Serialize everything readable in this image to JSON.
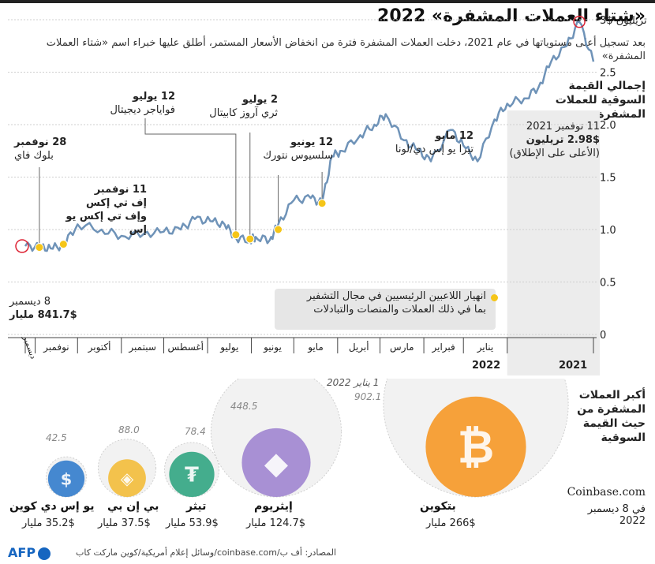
{
  "header": {
    "title": "«شتاء العملات المشفرة» 2022",
    "subtitle": "بعد تسجيل أعلى مستوياتها في عام 2021، دخلت العملات المشفرة فترة من انخفاض الأسعار المستمر، أطلق عليها خبراء اسم «شتاء العملات المشفرة»"
  },
  "y_title": "إجمالي القيمة السوقية للعملات المشفرة",
  "peak": {
    "date": "11 نوفمبر 2021",
    "value": "2.98$ تريليون",
    "note": "(الأعلى على الإطلاق)"
  },
  "start_label": {
    "date": "8 ديسمبر",
    "value": "841.7$ مليار"
  },
  "events": [
    {
      "date": "28 نوفمبر",
      "name": "بلوك فاي"
    },
    {
      "date": "11 نوفمبر",
      "name": "إف تي إكس",
      "name2": "وإف تي إكس يو إس"
    },
    {
      "date": "12 يوليو",
      "name": "فواياجر ديجيتال"
    },
    {
      "date": "2 يوليو",
      "name": "ثري آروز كابيتال"
    },
    {
      "date": "12 يونيو",
      "name": "سلسيوس نتورك"
    },
    {
      "date": "12 مايو",
      "name": "تيرا يو إس دي/لونا"
    }
  ],
  "legend": {
    "line1": "انهيار اللاعبين الرئيسيين في مجال التشفير",
    "line2": "بما في ذلك العملات والمنصات والتبادلات"
  },
  "chart_data": {
    "type": "line",
    "title": "إجمالي القيمة السوقية للعملات المشفرة",
    "ylabel": "تريليون دولار",
    "ylim": [
      0,
      3
    ],
    "yticks": [
      0,
      0.5,
      1.0,
      1.5,
      2.0,
      2.5,
      3
    ],
    "ytick_labels": [
      "0",
      "0.5",
      "1.0",
      "1.5",
      "2.0",
      "2.5",
      "3$ تريليون"
    ],
    "months": [
      "ديسمبر",
      "نوفمبر",
      "أكتوبر",
      "سبتمبر",
      "أغسطس",
      "يوليو",
      "يونيو",
      "مايو",
      "أبريل",
      "مارس",
      "فبراير",
      "يناير"
    ],
    "year_labels": [
      "2022",
      "2021"
    ],
    "series": [
      {
        "name": "القيمة السوقية",
        "x": [
          "2021-11-01",
          "2021-11-11",
          "2021-11-20",
          "2021-12-01",
          "2021-12-10",
          "2021-12-20",
          "2022-01-01",
          "2022-01-10",
          "2022-01-22",
          "2022-02-01",
          "2022-02-10",
          "2022-02-24",
          "2022-03-05",
          "2022-03-15",
          "2022-03-28",
          "2022-04-05",
          "2022-04-15",
          "2022-04-28",
          "2022-05-05",
          "2022-05-12",
          "2022-05-20",
          "2022-06-01",
          "2022-06-12",
          "2022-06-18",
          "2022-06-28",
          "2022-07-02",
          "2022-07-12",
          "2022-07-20",
          "2022-07-30",
          "2022-08-10",
          "2022-08-20",
          "2022-09-01",
          "2022-09-15",
          "2022-10-01",
          "2022-10-15",
          "2022-11-01",
          "2022-11-11",
          "2022-11-20",
          "2022-11-28",
          "2022-12-08"
        ],
        "values": [
          2.6,
          2.98,
          2.75,
          2.6,
          2.35,
          2.25,
          2.2,
          2.05,
          1.65,
          1.8,
          1.95,
          1.65,
          1.75,
          1.85,
          2.1,
          2.0,
          1.9,
          1.75,
          1.7,
          1.25,
          1.3,
          1.28,
          1.05,
          0.9,
          0.93,
          0.9,
          0.92,
          1.05,
          1.08,
          1.1,
          1.0,
          0.98,
          0.96,
          0.94,
          1.0,
          1.05,
          0.85,
          0.82,
          0.83,
          0.8417
        ]
      }
    ],
    "events": [
      {
        "date": "2022-11-28",
        "value": 0.83
      },
      {
        "date": "2022-11-11",
        "value": 0.86
      },
      {
        "date": "2022-07-12",
        "value": 0.95
      },
      {
        "date": "2022-07-02",
        "value": 0.91
      },
      {
        "date": "2022-06-12",
        "value": 1.0
      },
      {
        "date": "2022-05-12",
        "value": 1.25
      }
    ]
  },
  "bubbles": {
    "title": "أكبر العملات المشفرة من حيث القيمة السوقية",
    "source": "Coinbase.com",
    "asof": "في 8 ديسمبر 2022",
    "jan_label": "1 يناير 2022",
    "coins": [
      {
        "name": "بتكوين",
        "value": "266$ مليار",
        "jan": "902.1",
        "color": "#f7931a",
        "icon": "bitcoin-icon",
        "symbol": "₿"
      },
      {
        "name": "إيثريوم",
        "value": "124.7$ مليار",
        "jan": "448.5",
        "color": "#9b7fcf",
        "icon": "ethereum-icon",
        "symbol": "◆"
      },
      {
        "name": "تيثر",
        "value": "53.9$ مليار",
        "jan": "78.4",
        "color": "#26a17b",
        "icon": "tether-icon",
        "symbol": "₮"
      },
      {
        "name": "بي إن بي",
        "value": "37.5$ مليار",
        "jan": "88.0",
        "color": "#f3ba2f",
        "icon": "bnb-icon",
        "symbol": "◈"
      },
      {
        "name": "يو إس دي كوين",
        "value": "35.2$ مليار",
        "jan": "42.5",
        "color": "#2775ca",
        "icon": "usdc-icon",
        "symbol": "$"
      }
    ]
  },
  "footer": {
    "source": "المصادر: أف ب/coinbase.com/وسائل إعلام أمريكية/كوين ماركت كاب",
    "logo": "AFP"
  }
}
